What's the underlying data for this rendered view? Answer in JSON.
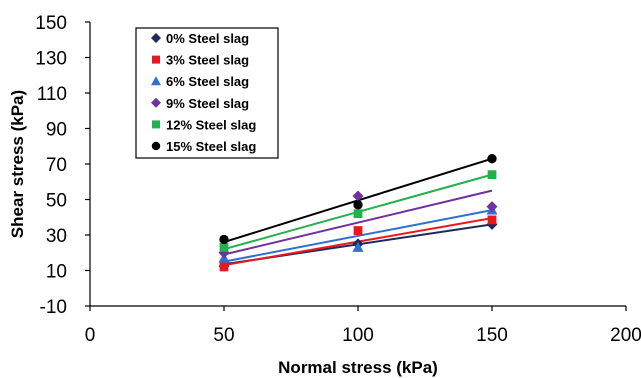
{
  "chart_data": {
    "type": "scatter",
    "title": "",
    "xlabel": "Normal stress (kPa)",
    "ylabel": "Shear stress (kPa)",
    "xlim": [
      0,
      200
    ],
    "ylim": [
      -10,
      150
    ],
    "xticks": [
      0,
      50,
      100,
      150,
      200
    ],
    "yticks": [
      -10,
      10,
      30,
      50,
      70,
      90,
      110,
      130,
      150
    ],
    "grid": false,
    "legend_position": "top-left",
    "trendlines": "linear",
    "series": [
      {
        "name": "0% Steel slag",
        "marker": "diamond",
        "color": "#1f2a5c",
        "x": [
          50,
          100,
          150
        ],
        "y": [
          12.5,
          25,
          36
        ],
        "fit": [
          13.5,
          36
        ]
      },
      {
        "name": "3% Steel slag",
        "marker": "square",
        "color": "#e8191e",
        "x": [
          50,
          100,
          150
        ],
        "y": [
          12,
          32.5,
          38.5
        ],
        "fit": [
          13,
          39.5
        ]
      },
      {
        "name": "6% Steel slag",
        "marker": "triangle",
        "color": "#2e6fd0",
        "x": [
          50,
          100,
          150
        ],
        "y": [
          17,
          23,
          44
        ],
        "fit": [
          15,
          44
        ]
      },
      {
        "name": "9% Steel slag",
        "marker": "diamond",
        "color": "#7030a0",
        "x": [
          50,
          100,
          150
        ],
        "y": [
          20,
          52,
          46
        ],
        "fit": [
          19,
          55
        ]
      },
      {
        "name": "12% Steel slag",
        "marker": "square",
        "color": "#22b14c",
        "x": [
          50,
          100,
          150
        ],
        "y": [
          23,
          42,
          64
        ],
        "fit": [
          22,
          64
        ]
      },
      {
        "name": "15% Steel slag",
        "marker": "circle",
        "color": "#000000",
        "x": [
          50,
          100,
          150
        ],
        "y": [
          27.5,
          47,
          73
        ],
        "fit": [
          26,
          73
        ]
      }
    ]
  }
}
